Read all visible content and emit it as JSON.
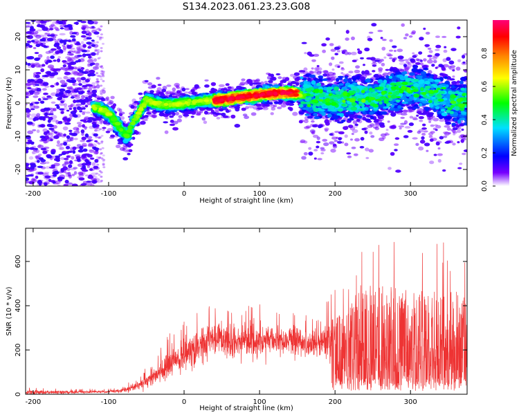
{
  "figure_title": "S134.2023.061.23.23.G08",
  "chart_data": [
    {
      "type": "heatmap",
      "xlabel": "Height of straight line (km)",
      "ylabel": "Frequency (Hz)",
      "xlim": [
        -210,
        375
      ],
      "ylim": [
        -25,
        25
      ],
      "xticks": [
        -200,
        -100,
        0,
        100,
        200,
        300
      ],
      "yticks": [
        -20,
        -10,
        0,
        10,
        20
      ],
      "grid": false,
      "colorbar": {
        "label": "Normalized spectral amplitude",
        "range": [
          0,
          1
        ],
        "ticks": [
          "0.0",
          "0.2",
          "0.4",
          "0.6",
          "0.8"
        ],
        "colormap": [
          "#ffffff",
          "#7700ff",
          "#0000ff",
          "#00e0ff",
          "#00ff00",
          "#ffff00",
          "#ff8800",
          "#ff0000",
          "#ff0077"
        ]
      },
      "ridge": {
        "height_km": [
          -120,
          -100,
          -90,
          -80,
          -75,
          -70,
          -60,
          -50,
          -40,
          -20,
          0,
          20,
          50,
          80,
          100,
          120,
          140,
          150,
          160,
          200,
          250,
          300,
          330,
          360,
          375
        ],
        "frequency_hz": [
          -1,
          -3,
          -6,
          -9,
          -10,
          -7,
          -3,
          1,
          0,
          -0.5,
          0,
          0.5,
          1,
          2,
          2.5,
          3,
          3,
          3,
          2,
          1,
          2,
          5,
          3,
          0,
          0
        ]
      }
    },
    {
      "type": "line",
      "xlabel": "Height of straight line (km)",
      "ylabel": "SNR (10 * v/v)",
      "xlim": [
        -210,
        375
      ],
      "ylim": [
        0,
        750
      ],
      "xticks": [
        -200,
        -100,
        0,
        100,
        200,
        300
      ],
      "yticks": [
        0,
        200,
        400,
        600
      ],
      "grid": false,
      "series": [
        {
          "color": "#ee3333",
          "envelope": {
            "height_km": [
              -210,
              -150,
              -100,
              -80,
              -60,
              -40,
              -20,
              0,
              20,
              40,
              60,
              100,
              150,
              180,
              200,
              220,
              250,
              300,
              350,
              375
            ],
            "mean_snr": [
              8,
              10,
              12,
              18,
              40,
              80,
              130,
              180,
              220,
              250,
              240,
              245,
              240,
              230,
              220,
              240,
              200,
              200,
              200,
              180
            ],
            "max_snr": [
              30,
              25,
              25,
              40,
              90,
              150,
              280,
              330,
              380,
              430,
              400,
              410,
              380,
              360,
              490,
              540,
              740,
              700,
              690,
              620
            ]
          }
        }
      ]
    }
  ]
}
